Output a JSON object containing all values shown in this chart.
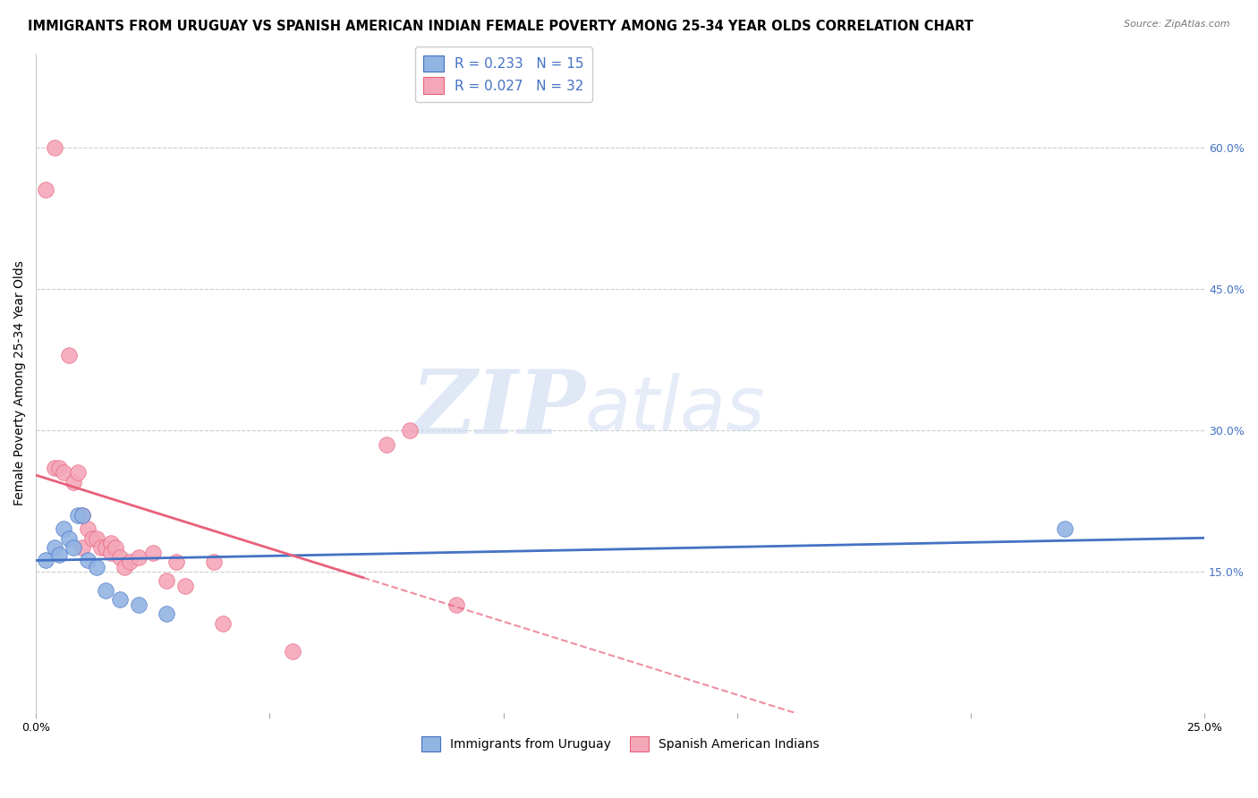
{
  "title": "IMMIGRANTS FROM URUGUAY VS SPANISH AMERICAN INDIAN FEMALE POVERTY AMONG 25-34 YEAR OLDS CORRELATION CHART",
  "source": "Source: ZipAtlas.com",
  "ylabel": "Female Poverty Among 25-34 Year Olds",
  "xlim": [
    0.0,
    0.25
  ],
  "ylim": [
    0.0,
    0.7
  ],
  "xticks": [
    0.0,
    0.05,
    0.1,
    0.15,
    0.2,
    0.25
  ],
  "xticklabels": [
    "0.0%",
    "",
    "",
    "",
    "",
    "25.0%"
  ],
  "yticks_right": [
    0.15,
    0.3,
    0.45,
    0.6
  ],
  "yticklabels_right": [
    "15.0%",
    "30.0%",
    "45.0%",
    "60.0%"
  ],
  "legend1_label": "Immigrants from Uruguay",
  "legend2_label": "Spanish American Indians",
  "R1": 0.233,
  "N1": 15,
  "R2": 0.027,
  "N2": 32,
  "color_blue": "#92b4e3",
  "color_pink": "#f4a7b9",
  "color_blue_line": "#4472c4",
  "color_pink_line": "#e8607a",
  "blue_scatter_x": [
    0.002,
    0.004,
    0.005,
    0.006,
    0.007,
    0.008,
    0.009,
    0.01,
    0.011,
    0.013,
    0.015,
    0.018,
    0.022,
    0.028,
    0.22
  ],
  "blue_scatter_y": [
    0.162,
    0.175,
    0.168,
    0.195,
    0.185,
    0.175,
    0.21,
    0.21,
    0.162,
    0.155,
    0.13,
    0.12,
    0.115,
    0.105,
    0.195
  ],
  "pink_scatter_x": [
    0.002,
    0.004,
    0.004,
    0.005,
    0.006,
    0.007,
    0.008,
    0.009,
    0.01,
    0.01,
    0.011,
    0.012,
    0.013,
    0.014,
    0.015,
    0.016,
    0.016,
    0.017,
    0.018,
    0.019,
    0.02,
    0.022,
    0.025,
    0.028,
    0.03,
    0.032,
    0.038,
    0.04,
    0.055,
    0.075,
    0.08,
    0.09
  ],
  "pink_scatter_y": [
    0.555,
    0.6,
    0.26,
    0.26,
    0.255,
    0.38,
    0.245,
    0.255,
    0.21,
    0.175,
    0.195,
    0.185,
    0.185,
    0.175,
    0.175,
    0.18,
    0.17,
    0.175,
    0.165,
    0.155,
    0.16,
    0.165,
    0.17,
    0.14,
    0.16,
    0.135,
    0.16,
    0.095,
    0.065,
    0.285,
    0.3,
    0.115
  ],
  "grid_color": "#cccccc",
  "background_color": "#ffffff",
  "title_fontsize": 10.5,
  "axis_label_fontsize": 10,
  "tick_fontsize": 9
}
